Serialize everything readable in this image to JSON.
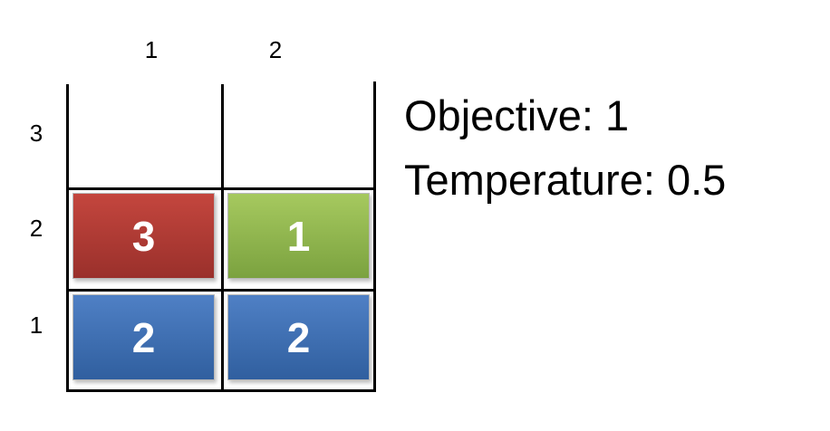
{
  "grid": {
    "column_labels": [
      "1",
      "2"
    ],
    "row_labels": [
      "3",
      "2",
      "1"
    ]
  },
  "blocks": [
    {
      "row": 2,
      "col": 1,
      "value": "3",
      "color": "#b83c35"
    },
    {
      "row": 2,
      "col": 2,
      "value": "1",
      "color": "#93b853"
    },
    {
      "row": 1,
      "col": 1,
      "value": "2",
      "color": "#4373b8"
    },
    {
      "row": 1,
      "col": 2,
      "value": "2",
      "color": "#4373b8"
    }
  ],
  "info": {
    "objective": "Objective: 1",
    "temperature": "Temperature: 0.5"
  }
}
